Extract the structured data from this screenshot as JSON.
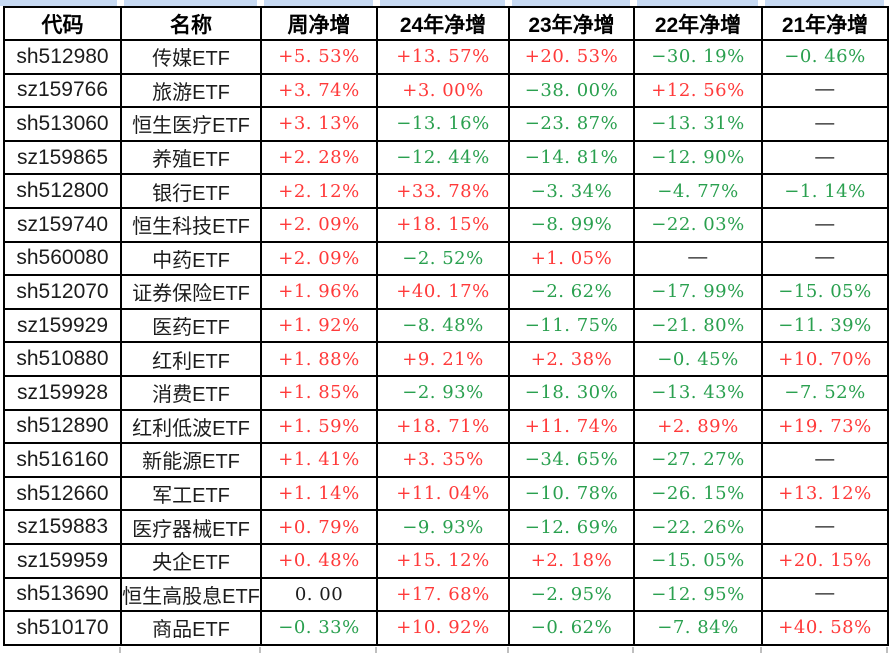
{
  "colors": {
    "up_red": "#ff3a3a",
    "down_green": "#2aa04f",
    "neutral_black": "#1c1c1c",
    "grid_border": "#000000",
    "top_strip_blue": "#c6d9f2",
    "background": "#ffffff"
  },
  "table": {
    "columns": [
      {
        "key": "code",
        "label": "代码"
      },
      {
        "key": "name",
        "label": "名称"
      },
      {
        "key": "week",
        "label": "周净增"
      },
      {
        "key": "y24",
        "label": "24年净增"
      },
      {
        "key": "y23",
        "label": "23年净增"
      },
      {
        "key": "y22",
        "label": "22年净增"
      },
      {
        "key": "y21",
        "label": "21年净增"
      }
    ],
    "rows": [
      {
        "code": "sh512980",
        "name": "传媒ETF",
        "values": [
          {
            "text": "+5. 53%",
            "tone": "up"
          },
          {
            "text": "+13. 57%",
            "tone": "up"
          },
          {
            "text": "+20. 53%",
            "tone": "up"
          },
          {
            "text": "−30. 19%",
            "tone": "down"
          },
          {
            "text": "−0. 46%",
            "tone": "down"
          }
        ]
      },
      {
        "code": "sz159766",
        "name": "旅游ETF",
        "values": [
          {
            "text": "+3. 74%",
            "tone": "up"
          },
          {
            "text": "+3. 00%",
            "tone": "up"
          },
          {
            "text": "−38. 00%",
            "tone": "down"
          },
          {
            "text": "+12. 56%",
            "tone": "up"
          },
          {
            "text": "—",
            "tone": "na"
          }
        ]
      },
      {
        "code": "sh513060",
        "name": "恒生医疗ETF",
        "values": [
          {
            "text": "+3. 13%",
            "tone": "up"
          },
          {
            "text": "−13. 16%",
            "tone": "down"
          },
          {
            "text": "−23. 87%",
            "tone": "down"
          },
          {
            "text": "−13. 31%",
            "tone": "down"
          },
          {
            "text": "—",
            "tone": "na"
          }
        ]
      },
      {
        "code": "sz159865",
        "name": "养殖ETF",
        "values": [
          {
            "text": "+2. 28%",
            "tone": "up"
          },
          {
            "text": "−12. 44%",
            "tone": "down"
          },
          {
            "text": "−14. 81%",
            "tone": "down"
          },
          {
            "text": "−12. 90%",
            "tone": "down"
          },
          {
            "text": "—",
            "tone": "na"
          }
        ]
      },
      {
        "code": "sh512800",
        "name": "银行ETF",
        "values": [
          {
            "text": "+2. 12%",
            "tone": "up"
          },
          {
            "text": "+33. 78%",
            "tone": "up"
          },
          {
            "text": "−3. 34%",
            "tone": "down"
          },
          {
            "text": "−4. 77%",
            "tone": "down"
          },
          {
            "text": "−1. 14%",
            "tone": "down"
          }
        ]
      },
      {
        "code": "sz159740",
        "name": "恒生科技ETF",
        "values": [
          {
            "text": "+2. 09%",
            "tone": "up"
          },
          {
            "text": "+18. 15%",
            "tone": "up"
          },
          {
            "text": "−8. 99%",
            "tone": "down"
          },
          {
            "text": "−22. 03%",
            "tone": "down"
          },
          {
            "text": "—",
            "tone": "na"
          }
        ]
      },
      {
        "code": "sh560080",
        "name": "中药ETF",
        "values": [
          {
            "text": "+2. 09%",
            "tone": "up"
          },
          {
            "text": "−2. 52%",
            "tone": "down"
          },
          {
            "text": "+1. 05%",
            "tone": "up"
          },
          {
            "text": "—",
            "tone": "na"
          },
          {
            "text": "—",
            "tone": "na"
          }
        ]
      },
      {
        "code": "sh512070",
        "name": "证券保险ETF",
        "values": [
          {
            "text": "+1. 96%",
            "tone": "up"
          },
          {
            "text": "+40. 17%",
            "tone": "up"
          },
          {
            "text": "−2. 62%",
            "tone": "down"
          },
          {
            "text": "−17. 99%",
            "tone": "down"
          },
          {
            "text": "−15. 05%",
            "tone": "down"
          }
        ]
      },
      {
        "code": "sz159929",
        "name": "医药ETF",
        "values": [
          {
            "text": "+1. 92%",
            "tone": "up"
          },
          {
            "text": "−8. 48%",
            "tone": "down"
          },
          {
            "text": "−11. 75%",
            "tone": "down"
          },
          {
            "text": "−21. 80%",
            "tone": "down"
          },
          {
            "text": "−11. 39%",
            "tone": "down"
          }
        ]
      },
      {
        "code": "sh510880",
        "name": "红利ETF",
        "values": [
          {
            "text": "+1. 88%",
            "tone": "up"
          },
          {
            "text": "+9. 21%",
            "tone": "up"
          },
          {
            "text": "+2. 38%",
            "tone": "up"
          },
          {
            "text": "−0. 45%",
            "tone": "down"
          },
          {
            "text": "+10. 70%",
            "tone": "up"
          }
        ]
      },
      {
        "code": "sz159928",
        "name": "消费ETF",
        "values": [
          {
            "text": "+1. 85%",
            "tone": "up"
          },
          {
            "text": "−2. 93%",
            "tone": "down"
          },
          {
            "text": "−18. 30%",
            "tone": "down"
          },
          {
            "text": "−13. 43%",
            "tone": "down"
          },
          {
            "text": "−7. 52%",
            "tone": "down"
          }
        ]
      },
      {
        "code": "sh512890",
        "name": "红利低波ETF",
        "values": [
          {
            "text": "+1. 59%",
            "tone": "up"
          },
          {
            "text": "+18. 71%",
            "tone": "up"
          },
          {
            "text": "+11. 74%",
            "tone": "up"
          },
          {
            "text": "+2. 89%",
            "tone": "up"
          },
          {
            "text": "+19. 73%",
            "tone": "up"
          }
        ]
      },
      {
        "code": "sh516160",
        "name": "新能源ETF",
        "values": [
          {
            "text": "+1. 41%",
            "tone": "up"
          },
          {
            "text": "+3. 35%",
            "tone": "up"
          },
          {
            "text": "−34. 65%",
            "tone": "down"
          },
          {
            "text": "−27. 27%",
            "tone": "down"
          },
          {
            "text": "—",
            "tone": "na"
          }
        ]
      },
      {
        "code": "sh512660",
        "name": "军工ETF",
        "values": [
          {
            "text": "+1. 14%",
            "tone": "up"
          },
          {
            "text": "+11. 04%",
            "tone": "up"
          },
          {
            "text": "−10. 78%",
            "tone": "down"
          },
          {
            "text": "−26. 15%",
            "tone": "down"
          },
          {
            "text": "+13. 12%",
            "tone": "up"
          }
        ]
      },
      {
        "code": "sz159883",
        "name": "医疗器械ETF",
        "values": [
          {
            "text": "+0. 79%",
            "tone": "up"
          },
          {
            "text": "−9. 93%",
            "tone": "down"
          },
          {
            "text": "−12. 69%",
            "tone": "down"
          },
          {
            "text": "−22. 26%",
            "tone": "down"
          },
          {
            "text": "—",
            "tone": "na"
          }
        ]
      },
      {
        "code": "sz159959",
        "name": "央企ETF",
        "values": [
          {
            "text": "+0. 48%",
            "tone": "up"
          },
          {
            "text": "+15. 12%",
            "tone": "up"
          },
          {
            "text": "+2. 18%",
            "tone": "up"
          },
          {
            "text": "−15. 05%",
            "tone": "down"
          },
          {
            "text": "+20. 15%",
            "tone": "up"
          }
        ]
      },
      {
        "code": "sh513690",
        "name": "恒生高股息ETF",
        "values": [
          {
            "text": "0. 00",
            "tone": "flat"
          },
          {
            "text": "+17. 68%",
            "tone": "up"
          },
          {
            "text": "−2. 95%",
            "tone": "down"
          },
          {
            "text": "−12. 95%",
            "tone": "down"
          },
          {
            "text": "—",
            "tone": "na"
          }
        ]
      },
      {
        "code": "sh510170",
        "name": "商品ETF",
        "values": [
          {
            "text": "−0. 33%",
            "tone": "down"
          },
          {
            "text": "+10. 92%",
            "tone": "up"
          },
          {
            "text": "−0. 62%",
            "tone": "down"
          },
          {
            "text": "−7. 84%",
            "tone": "down"
          },
          {
            "text": "+40. 58%",
            "tone": "up"
          }
        ]
      }
    ]
  }
}
